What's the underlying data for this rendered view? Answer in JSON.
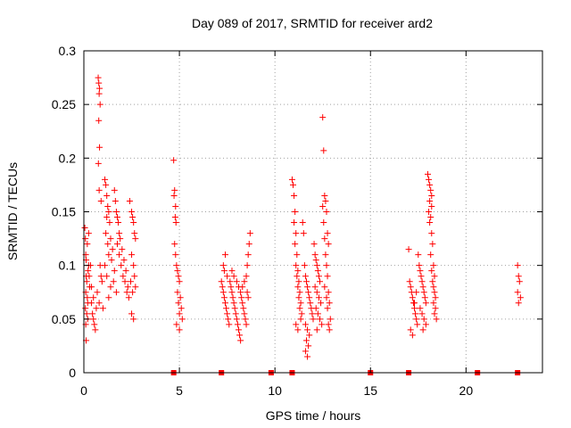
{
  "chart_data": {
    "type": "scatter",
    "title": "Day 089 of 2017, SRMTID for receiver ard2",
    "xlabel": "GPS time / hours",
    "ylabel": "SRMTID / TECUs",
    "xlim": [
      0,
      24
    ],
    "ylim": [
      0,
      0.3
    ],
    "xticks": [
      0,
      5,
      10,
      15,
      20
    ],
    "yticks": [
      0,
      0.05,
      0.1,
      0.15,
      0.2,
      0.25,
      0.3
    ],
    "xtick_labels": [
      "0",
      "5",
      "10",
      "15",
      "20"
    ],
    "ytick_labels": [
      "0",
      "0.05",
      "0.1",
      "0.15",
      "0.2",
      "0.25",
      "0.3"
    ],
    "grid": true,
    "marker": "+",
    "color": "#ff0000",
    "zero_markers_x": [
      4.7,
      7.2,
      9.8,
      10.9,
      15.0,
      17.0,
      20.6,
      22.7
    ],
    "series": [
      {
        "name": "SRMTID",
        "points": [
          [
            0.05,
            0.135
          ],
          [
            0.08,
            0.125
          ],
          [
            0.1,
            0.11
          ],
          [
            0.12,
            0.105
          ],
          [
            0.12,
            0.09
          ],
          [
            0.15,
            0.085
          ],
          [
            0.1,
            0.075
          ],
          [
            0.18,
            0.07
          ],
          [
            0.2,
            0.065
          ],
          [
            0.08,
            0.06
          ],
          [
            0.15,
            0.055
          ],
          [
            0.2,
            0.05
          ],
          [
            0.1,
            0.045
          ],
          [
            0.12,
            0.03
          ],
          [
            0.25,
            0.1
          ],
          [
            0.22,
            0.095
          ],
          [
            0.28,
            0.09
          ],
          [
            0.3,
            0.08
          ],
          [
            0.18,
            0.12
          ],
          [
            0.25,
            0.13
          ],
          [
            0.4,
            0.065
          ],
          [
            0.45,
            0.055
          ],
          [
            0.5,
            0.05
          ],
          [
            0.55,
            0.045
          ],
          [
            0.6,
            0.04
          ],
          [
            0.5,
            0.07
          ],
          [
            0.65,
            0.06
          ],
          [
            0.4,
            0.08
          ],
          [
            0.7,
            0.075
          ],
          [
            0.35,
            0.1
          ],
          [
            0.75,
            0.275
          ],
          [
            0.78,
            0.27
          ],
          [
            0.82,
            0.265
          ],
          [
            0.8,
            0.26
          ],
          [
            0.85,
            0.25
          ],
          [
            0.78,
            0.235
          ],
          [
            0.82,
            0.21
          ],
          [
            0.76,
            0.195
          ],
          [
            0.8,
            0.17
          ],
          [
            0.9,
            0.16
          ],
          [
            0.85,
            0.1
          ],
          [
            0.9,
            0.09
          ],
          [
            0.95,
            0.085
          ],
          [
            0.8,
            0.065
          ],
          [
            1.0,
            0.06
          ],
          [
            1.1,
            0.18
          ],
          [
            1.15,
            0.175
          ],
          [
            1.2,
            0.165
          ],
          [
            1.25,
            0.155
          ],
          [
            1.3,
            0.15
          ],
          [
            1.2,
            0.145
          ],
          [
            1.35,
            0.14
          ],
          [
            1.15,
            0.13
          ],
          [
            1.4,
            0.125
          ],
          [
            1.25,
            0.12
          ],
          [
            1.5,
            0.115
          ],
          [
            1.3,
            0.11
          ],
          [
            1.45,
            0.105
          ],
          [
            1.1,
            0.1
          ],
          [
            1.6,
            0.095
          ],
          [
            1.2,
            0.09
          ],
          [
            1.55,
            0.085
          ],
          [
            1.4,
            0.08
          ],
          [
            1.7,
            0.075
          ],
          [
            1.3,
            0.07
          ],
          [
            1.6,
            0.17
          ],
          [
            1.65,
            0.16
          ],
          [
            1.7,
            0.15
          ],
          [
            1.75,
            0.145
          ],
          [
            1.8,
            0.14
          ],
          [
            1.85,
            0.13
          ],
          [
            1.9,
            0.125
          ],
          [
            1.75,
            0.12
          ],
          [
            2.0,
            0.115
          ],
          [
            1.85,
            0.11
          ],
          [
            2.1,
            0.105
          ],
          [
            1.95,
            0.1
          ],
          [
            2.2,
            0.095
          ],
          [
            2.05,
            0.09
          ],
          [
            2.15,
            0.085
          ],
          [
            2.3,
            0.08
          ],
          [
            2.25,
            0.075
          ],
          [
            2.35,
            0.07
          ],
          [
            2.4,
            0.16
          ],
          [
            2.5,
            0.15
          ],
          [
            2.55,
            0.145
          ],
          [
            2.6,
            0.14
          ],
          [
            2.65,
            0.13
          ],
          [
            2.7,
            0.125
          ],
          [
            2.5,
            0.11
          ],
          [
            2.6,
            0.1
          ],
          [
            2.65,
            0.09
          ],
          [
            2.45,
            0.085
          ],
          [
            2.7,
            0.08
          ],
          [
            2.55,
            0.075
          ],
          [
            2.5,
            0.055
          ],
          [
            2.6,
            0.05
          ],
          [
            4.7,
            0.198
          ],
          [
            4.75,
            0.17
          ],
          [
            4.72,
            0.165
          ],
          [
            4.8,
            0.155
          ],
          [
            4.78,
            0.145
          ],
          [
            4.82,
            0.14
          ],
          [
            4.75,
            0.12
          ],
          [
            4.8,
            0.11
          ],
          [
            4.85,
            0.1
          ],
          [
            4.9,
            0.095
          ],
          [
            4.95,
            0.09
          ],
          [
            5.0,
            0.085
          ],
          [
            4.9,
            0.075
          ],
          [
            5.05,
            0.07
          ],
          [
            4.95,
            0.065
          ],
          [
            5.1,
            0.06
          ],
          [
            5.0,
            0.055
          ],
          [
            5.15,
            0.05
          ],
          [
            4.85,
            0.045
          ],
          [
            5.0,
            0.04
          ],
          [
            7.2,
            0.085
          ],
          [
            7.25,
            0.08
          ],
          [
            7.3,
            0.075
          ],
          [
            7.35,
            0.07
          ],
          [
            7.4,
            0.065
          ],
          [
            7.45,
            0.06
          ],
          [
            7.5,
            0.055
          ],
          [
            7.55,
            0.05
          ],
          [
            7.6,
            0.045
          ],
          [
            7.3,
            0.1
          ],
          [
            7.35,
            0.095
          ],
          [
            7.4,
            0.11
          ],
          [
            7.5,
            0.09
          ],
          [
            7.65,
            0.085
          ],
          [
            7.7,
            0.08
          ],
          [
            7.75,
            0.075
          ],
          [
            7.8,
            0.07
          ],
          [
            7.85,
            0.065
          ],
          [
            7.9,
            0.06
          ],
          [
            7.95,
            0.055
          ],
          [
            8.0,
            0.05
          ],
          [
            8.05,
            0.045
          ],
          [
            8.1,
            0.04
          ],
          [
            8.15,
            0.035
          ],
          [
            8.2,
            0.03
          ],
          [
            7.75,
            0.095
          ],
          [
            7.85,
            0.09
          ],
          [
            8.0,
            0.085
          ],
          [
            8.1,
            0.08
          ],
          [
            8.2,
            0.075
          ],
          [
            8.25,
            0.07
          ],
          [
            8.3,
            0.065
          ],
          [
            8.35,
            0.06
          ],
          [
            8.4,
            0.055
          ],
          [
            8.45,
            0.05
          ],
          [
            8.5,
            0.045
          ],
          [
            8.3,
            0.08
          ],
          [
            8.4,
            0.085
          ],
          [
            8.5,
            0.09
          ],
          [
            8.55,
            0.1
          ],
          [
            8.6,
            0.11
          ],
          [
            8.65,
            0.12
          ],
          [
            8.7,
            0.13
          ],
          [
            8.55,
            0.075
          ],
          [
            8.6,
            0.07
          ],
          [
            10.9,
            0.18
          ],
          [
            10.95,
            0.175
          ],
          [
            11.0,
            0.165
          ],
          [
            11.05,
            0.15
          ],
          [
            11.0,
            0.14
          ],
          [
            11.1,
            0.13
          ],
          [
            11.05,
            0.12
          ],
          [
            11.15,
            0.11
          ],
          [
            11.1,
            0.1
          ],
          [
            11.2,
            0.095
          ],
          [
            11.15,
            0.09
          ],
          [
            11.25,
            0.085
          ],
          [
            11.2,
            0.08
          ],
          [
            11.3,
            0.075
          ],
          [
            11.25,
            0.07
          ],
          [
            11.35,
            0.065
          ],
          [
            11.3,
            0.06
          ],
          [
            11.4,
            0.055
          ],
          [
            11.35,
            0.05
          ],
          [
            11.1,
            0.045
          ],
          [
            11.2,
            0.04
          ],
          [
            11.45,
            0.14
          ],
          [
            11.5,
            0.13
          ],
          [
            11.55,
            0.1
          ],
          [
            11.6,
            0.09
          ],
          [
            11.65,
            0.085
          ],
          [
            11.7,
            0.08
          ],
          [
            11.75,
            0.075
          ],
          [
            11.8,
            0.07
          ],
          [
            11.85,
            0.065
          ],
          [
            11.9,
            0.06
          ],
          [
            11.95,
            0.055
          ],
          [
            12.0,
            0.05
          ],
          [
            11.6,
            0.045
          ],
          [
            11.7,
            0.04
          ],
          [
            11.8,
            0.035
          ],
          [
            11.65,
            0.03
          ],
          [
            11.75,
            0.025
          ],
          [
            11.6,
            0.02
          ],
          [
            11.7,
            0.015
          ],
          [
            12.05,
            0.12
          ],
          [
            12.1,
            0.11
          ],
          [
            12.15,
            0.105
          ],
          [
            12.2,
            0.1
          ],
          [
            12.25,
            0.095
          ],
          [
            12.3,
            0.09
          ],
          [
            12.35,
            0.085
          ],
          [
            12.1,
            0.08
          ],
          [
            12.2,
            0.075
          ],
          [
            12.3,
            0.07
          ],
          [
            12.4,
            0.065
          ],
          [
            12.15,
            0.06
          ],
          [
            12.25,
            0.055
          ],
          [
            12.35,
            0.05
          ],
          [
            12.45,
            0.045
          ],
          [
            12.2,
            0.04
          ],
          [
            12.5,
            0.238
          ],
          [
            12.55,
            0.207
          ],
          [
            12.6,
            0.165
          ],
          [
            12.65,
            0.16
          ],
          [
            12.5,
            0.155
          ],
          [
            12.7,
            0.15
          ],
          [
            12.55,
            0.14
          ],
          [
            12.75,
            0.13
          ],
          [
            12.6,
            0.125
          ],
          [
            12.8,
            0.12
          ],
          [
            12.65,
            0.11
          ],
          [
            12.7,
            0.1
          ],
          [
            12.75,
            0.09
          ],
          [
            12.6,
            0.08
          ],
          [
            12.8,
            0.075
          ],
          [
            12.7,
            0.07
          ],
          [
            12.85,
            0.065
          ],
          [
            12.75,
            0.06
          ],
          [
            12.9,
            0.05
          ],
          [
            12.8,
            0.045
          ],
          [
            12.85,
            0.04
          ],
          [
            17.0,
            0.115
          ],
          [
            17.05,
            0.085
          ],
          [
            17.1,
            0.08
          ],
          [
            17.15,
            0.075
          ],
          [
            17.2,
            0.07
          ],
          [
            17.25,
            0.065
          ],
          [
            17.3,
            0.06
          ],
          [
            17.35,
            0.055
          ],
          [
            17.4,
            0.05
          ],
          [
            17.45,
            0.045
          ],
          [
            17.1,
            0.04
          ],
          [
            17.2,
            0.035
          ],
          [
            17.3,
            0.065
          ],
          [
            17.4,
            0.075
          ],
          [
            17.5,
            0.11
          ],
          [
            17.55,
            0.1
          ],
          [
            17.6,
            0.095
          ],
          [
            17.65,
            0.09
          ],
          [
            17.7,
            0.085
          ],
          [
            17.75,
            0.08
          ],
          [
            17.8,
            0.075
          ],
          [
            17.85,
            0.07
          ],
          [
            17.9,
            0.065
          ],
          [
            17.6,
            0.06
          ],
          [
            17.7,
            0.055
          ],
          [
            17.8,
            0.05
          ],
          [
            17.9,
            0.045
          ],
          [
            17.75,
            0.04
          ],
          [
            18.0,
            0.185
          ],
          [
            18.05,
            0.18
          ],
          [
            18.1,
            0.175
          ],
          [
            18.15,
            0.17
          ],
          [
            18.2,
            0.165
          ],
          [
            18.1,
            0.16
          ],
          [
            18.2,
            0.155
          ],
          [
            18.05,
            0.15
          ],
          [
            18.15,
            0.145
          ],
          [
            18.1,
            0.14
          ],
          [
            18.2,
            0.13
          ],
          [
            18.25,
            0.12
          ],
          [
            18.15,
            0.11
          ],
          [
            18.3,
            0.1
          ],
          [
            18.2,
            0.095
          ],
          [
            18.35,
            0.09
          ],
          [
            18.25,
            0.085
          ],
          [
            18.3,
            0.08
          ],
          [
            18.35,
            0.075
          ],
          [
            18.4,
            0.07
          ],
          [
            18.3,
            0.065
          ],
          [
            18.4,
            0.06
          ],
          [
            18.35,
            0.055
          ],
          [
            18.45,
            0.05
          ],
          [
            22.7,
            0.1
          ],
          [
            22.75,
            0.09
          ],
          [
            22.8,
            0.085
          ],
          [
            22.7,
            0.075
          ],
          [
            22.85,
            0.07
          ],
          [
            22.75,
            0.065
          ]
        ]
      }
    ]
  }
}
